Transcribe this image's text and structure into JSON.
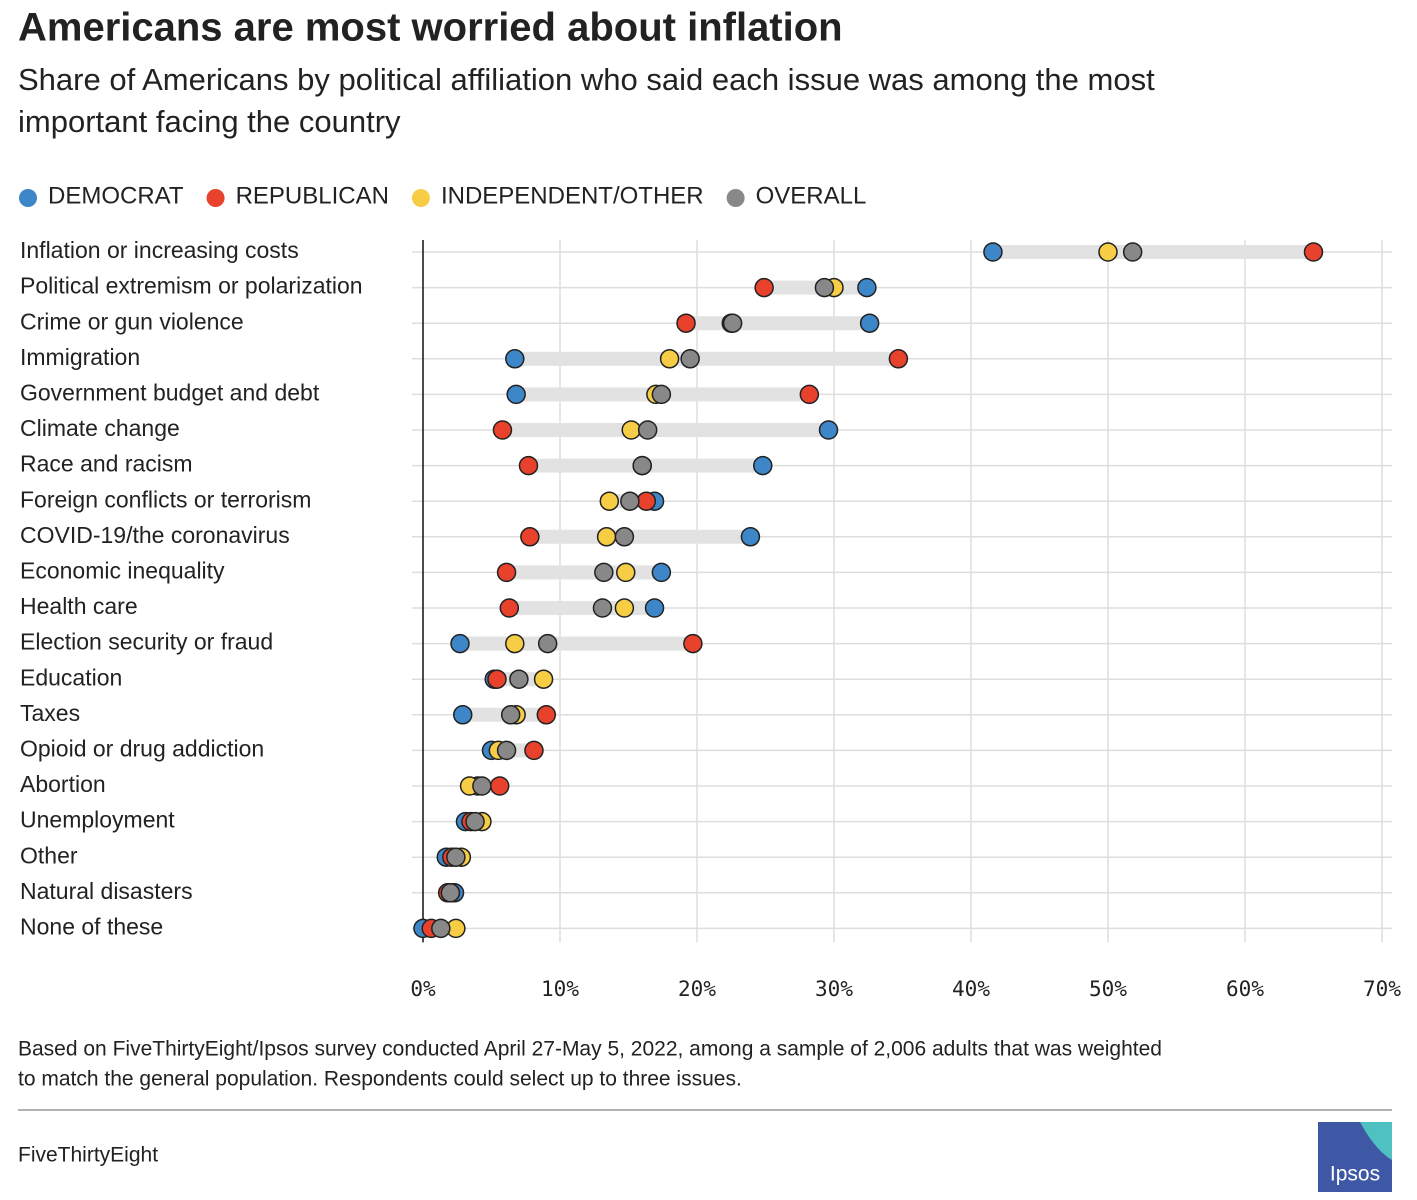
{
  "chart_data": {
    "type": "dot",
    "title": "Americans are most worried about inflation",
    "subtitle": [
      "Share of Americans by political affiliation who said each issue was among the most",
      "important facing the country"
    ],
    "categories": [
      "Inflation or increasing costs",
      "Political extremism or polarization",
      "Crime or gun violence",
      "Immigration",
      "Government budget and debt",
      "Climate change",
      "Race and racism",
      "Foreign conflicts or terrorism",
      "COVID-19/the coronavirus",
      "Economic inequality",
      "Health care",
      "Election security or fraud",
      "Education",
      "Taxes",
      "Opioid or drug addiction",
      "Abortion",
      "Unemployment",
      "Other",
      "Natural disasters",
      "None of these"
    ],
    "series": [
      {
        "name": "DEMOCRAT",
        "color": "#3d87c9",
        "values": [
          41.6,
          32.4,
          32.6,
          6.7,
          6.8,
          29.6,
          24.8,
          16.9,
          23.9,
          17.4,
          16.9,
          2.7,
          5.2,
          2.9,
          5.0,
          4.0,
          3.1,
          1.7,
          2.3,
          0
        ]
      },
      {
        "name": "REPUBLICAN",
        "color": "#e8412c",
        "values": [
          65,
          24.9,
          19.2,
          34.7,
          28.2,
          5.8,
          7.7,
          16.3,
          7.8,
          6.1,
          6.3,
          19.7,
          5.4,
          9.0,
          8.1,
          5.6,
          3.5,
          2.1,
          1.8,
          0.6
        ]
      },
      {
        "name": "INDEPENDENT/OTHER",
        "color": "#f6cd45",
        "values": [
          50,
          30,
          22.5,
          18,
          17,
          15.2,
          16,
          13.6,
          13.4,
          14.8,
          14.7,
          6.7,
          8.8,
          6.8,
          5.5,
          3.4,
          4.3,
          2.8,
          2.0,
          2.4
        ]
      },
      {
        "name": "OVERALL",
        "color": "#888888",
        "values": [
          51.8,
          29.3,
          22.6,
          19.5,
          17.4,
          16.4,
          16,
          15.1,
          14.7,
          13.2,
          13.1,
          9.1,
          7.0,
          6.4,
          6.1,
          4.3,
          3.8,
          2.4,
          2.0,
          1.3
        ]
      }
    ],
    "xlim": [
      0,
      70
    ],
    "xticks": [
      {
        "value": 0,
        "label": "0%"
      },
      {
        "value": 10,
        "label": "10%"
      },
      {
        "value": 20,
        "label": "20%"
      },
      {
        "value": 30,
        "label": "30%"
      },
      {
        "value": 40,
        "label": "40%"
      },
      {
        "value": 50,
        "label": "50%"
      },
      {
        "value": 60,
        "label": "60%"
      },
      {
        "value": 70,
        "label": "70%"
      }
    ],
    "grid": true,
    "legend": "top",
    "footnote": [
      "Based on FiveThirtyEight/Ipsos survey conducted April 27-May 5, 2022, among a sample of 2,006 adults that was weighted",
      "to match the general population. Respondents could select up to three issues."
    ],
    "source": "FiveThirtyEight",
    "logo": "Ipsos"
  }
}
